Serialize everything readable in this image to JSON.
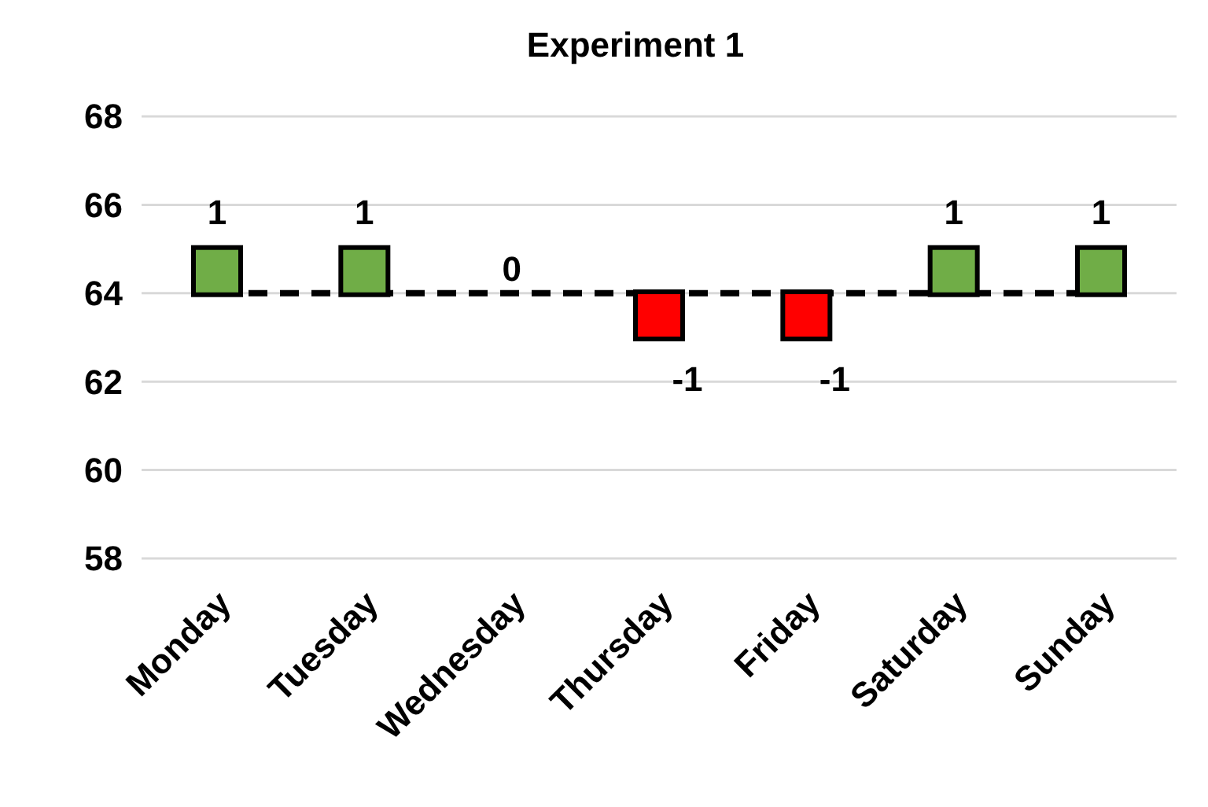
{
  "chart_data": {
    "type": "scatter",
    "title": "Experiment 1",
    "categories": [
      "Monday",
      "Tuesday",
      "Wednesday",
      "Thursday",
      "Friday",
      "Saturday",
      "Sunday"
    ],
    "series": [
      {
        "type": "line",
        "color": "#000000",
        "line_style": "dashed",
        "marker": "none",
        "values": [
          64,
          64,
          64,
          64,
          64,
          64,
          64
        ]
      },
      {
        "marker": "square",
        "colors": [
          "#70ad47",
          "#70ad47",
          null,
          "#ff0000",
          "#ff0000",
          "#70ad47",
          "#70ad47"
        ],
        "values": [
          64.5,
          64.5,
          null,
          63.5,
          63.5,
          64.5,
          64.5
        ]
      }
    ],
    "annotations": [
      "1",
      "1",
      "0",
      "-1",
      "-1",
      "1",
      "1"
    ],
    "ylim": [
      58,
      68
    ],
    "yticks": [
      58,
      60,
      62,
      64,
      66,
      68
    ],
    "grid": "y"
  }
}
